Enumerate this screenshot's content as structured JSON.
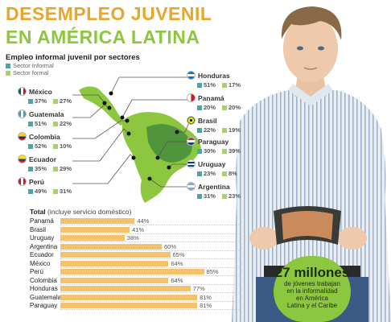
{
  "header": {
    "title_line1": "DESEMPLEO JUVENIL",
    "title_line2": "EN AMÉRICA LATINA",
    "subtitle": "Empleo informal juvenil por sectores",
    "legend": [
      {
        "label": "Sector Informal",
        "color": "#4fa3a8"
      },
      {
        "label": "Sector formal",
        "color": "#a8d26b"
      }
    ]
  },
  "colors": {
    "title1": "#e8a62a",
    "title2": "#8dc63f",
    "bar": "#f6c16b",
    "badge": "#8dc63f",
    "informal": "#4fa3a8",
    "formal": "#a8d26b",
    "map_land": "#8dc63f",
    "map_dark": "#1f6b3a"
  },
  "countries": [
    {
      "key": "mexico",
      "name": "México",
      "informal": "37%",
      "formal": "27%",
      "flag": [
        "#006847",
        "#ffffff",
        "#ce1126"
      ]
    },
    {
      "key": "guatemala",
      "name": "Guatemala",
      "informal": "51%",
      "formal": "22%",
      "flag": [
        "#4997d0",
        "#ffffff",
        "#4997d0"
      ]
    },
    {
      "key": "colombia",
      "name": "Colombia",
      "informal": "52%",
      "formal": "10%",
      "flag": [
        "#fcd116",
        "#003893",
        "#ce1126"
      ]
    },
    {
      "key": "ecuador",
      "name": "Ecuador",
      "informal": "35%",
      "formal": "29%",
      "flag": [
        "#ffdd00",
        "#034ea2",
        "#ed1c24"
      ]
    },
    {
      "key": "peru",
      "name": "Perú",
      "informal": "49%",
      "formal": "31%",
      "flag": [
        "#d91023",
        "#ffffff",
        "#d91023"
      ]
    },
    {
      "key": "honduras",
      "name": "Honduras",
      "informal": "51%",
      "formal": "17%",
      "flag": [
        "#0073cf",
        "#ffffff",
        "#0073cf"
      ]
    },
    {
      "key": "panama",
      "name": "Panamá",
      "informal": "20%",
      "formal": "20%",
      "flag": [
        "#da121a",
        "#ffffff",
        "#072357"
      ]
    },
    {
      "key": "brasil",
      "name": "Brasil",
      "informal": "22%",
      "formal": "19%",
      "flag": [
        "#009c3b",
        "#ffdf00",
        "#002776"
      ]
    },
    {
      "key": "paraguay",
      "name": "Paraguay",
      "informal": "30%",
      "formal": "39%",
      "flag": [
        "#d52b1e",
        "#ffffff",
        "#0038a8"
      ]
    },
    {
      "key": "uruguay",
      "name": "Uruguay",
      "informal": "23%",
      "formal": "8%",
      "flag": [
        "#0038a8",
        "#ffffff",
        "#0038a8"
      ]
    },
    {
      "key": "argentina",
      "name": "Argentina",
      "informal": "31%",
      "formal": "23%",
      "flag": [
        "#74acdf",
        "#ffffff",
        "#74acdf"
      ]
    }
  ],
  "chart_data": {
    "type": "bar",
    "title": "Total (incluye servicio doméstico)",
    "title_bold": "Total",
    "title_rest": " (incluye servicio doméstico)",
    "categories": [
      "Panamá",
      "Brasil",
      "Uruguay",
      "Argentina",
      "Ecuador",
      "México",
      "Perú",
      "Colombia",
      "Honduras",
      "Guatemala",
      "Paraguay"
    ],
    "values": [
      44,
      41,
      38,
      60,
      65,
      64,
      85,
      64,
      77,
      81,
      81
    ],
    "labels": [
      "44%",
      "41%",
      "38%",
      "60%",
      "65%",
      "64%",
      "85%",
      "64%",
      "77%",
      "81%",
      "81%"
    ],
    "xlim": [
      0,
      100
    ]
  },
  "badge": {
    "big": "27 millones",
    "line1": "de jóvenes trabajan",
    "line2": "en la informalidad",
    "line3": "en América",
    "line4": "Latina y el Caribe"
  }
}
